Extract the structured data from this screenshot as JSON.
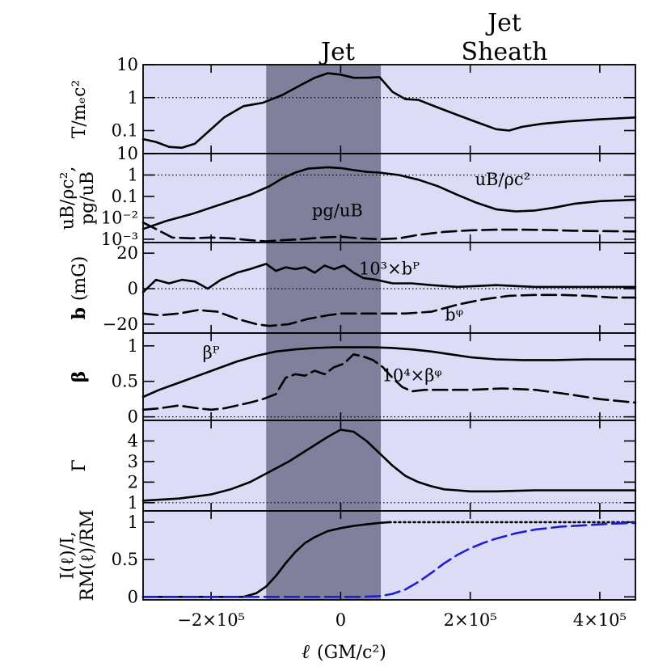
{
  "chart_data": {
    "type": "line",
    "region_labels": {
      "jet": "Jet",
      "sheath_top": "Jet",
      "sheath_bottom": "Sheath"
    },
    "regions": {
      "jet_x": [
        -115000,
        62000
      ],
      "sheath_x": [
        62000,
        455000
      ],
      "colors": {
        "background": "#dcdcf6",
        "jet": "#80809c"
      }
    },
    "x_axis": {
      "label_symbol": "ℓ",
      "label_units": "(GM/c²)",
      "range": [
        -305000,
        455000
      ],
      "ticks": [
        {
          "v": -200000,
          "label": "−2×10⁵"
        },
        {
          "v": 0,
          "label": "0"
        },
        {
          "v": 200000,
          "label": "2×10⁵"
        },
        {
          "v": 400000,
          "label": "4×10⁵"
        }
      ]
    },
    "panels": [
      {
        "ylabel": [
          "T/mₑc²"
        ],
        "scale": "log",
        "ylim": [
          0.02,
          10
        ],
        "ref_line": 1,
        "ticks": [
          {
            "v": 10,
            "label": "10"
          },
          {
            "v": 1,
            "label": "1"
          },
          {
            "v": 0.1,
            "label": "0.1"
          }
        ],
        "series": [
          {
            "style": "solid",
            "color": "#000000",
            "x": [
              -305000,
              -285000,
              -265000,
              -245000,
              -225000,
              -205000,
              -180000,
              -150000,
              -120000,
              -90000,
              -60000,
              -40000,
              -20000,
              0,
              20000,
              40000,
              60000,
              80000,
              100000,
              120000,
              150000,
              180000,
              210000,
              240000,
              260000,
              280000,
              310000,
              350000,
              400000,
              455000
            ],
            "y": [
              0.055,
              0.045,
              0.032,
              0.03,
              0.04,
              0.09,
              0.25,
              0.55,
              0.7,
              1.2,
              2.5,
              4.0,
              5.5,
              5.0,
              4.0,
              4.0,
              4.2,
              1.5,
              0.9,
              0.85,
              0.5,
              0.3,
              0.18,
              0.11,
              0.1,
              0.13,
              0.16,
              0.19,
              0.22,
              0.25
            ]
          }
        ]
      },
      {
        "ylabel": [
          "uB/ρc²,",
          "pg/uB"
        ],
        "scale": "log",
        "ylim": [
          0.0007,
          10
        ],
        "ref_line": 1,
        "ticks": [
          {
            "v": 10,
            "label": "10"
          },
          {
            "v": 1,
            "label": "1"
          },
          {
            "v": 0.1,
            "label": "0.1"
          },
          {
            "v": 0.01,
            "label": "10⁻²"
          },
          {
            "v": 0.001,
            "label": "10⁻³"
          }
        ],
        "annotations": [
          {
            "text": "uB/ρc²",
            "x": 250000,
            "y": 0.33
          },
          {
            "text": "pg/uB",
            "x": -5000,
            "y": 0.012
          }
        ],
        "series": [
          {
            "name": "uB/ρc²",
            "style": "solid",
            "color": "#000000",
            "x": [
              -305000,
              -270000,
              -230000,
              -200000,
              -170000,
              -140000,
              -110000,
              -90000,
              -70000,
              -50000,
              -20000,
              0,
              20000,
              40000,
              60000,
              90000,
              120000,
              150000,
              180000,
              210000,
              240000,
              270000,
              300000,
              330000,
              360000,
              400000,
              455000
            ],
            "y": [
              0.003,
              0.007,
              0.015,
              0.03,
              0.06,
              0.12,
              0.3,
              0.7,
              1.3,
              2.0,
              2.3,
              2.1,
              1.7,
              1.4,
              1.3,
              1.0,
              0.6,
              0.3,
              0.12,
              0.05,
              0.025,
              0.02,
              0.022,
              0.03,
              0.045,
              0.06,
              0.07
            ]
          },
          {
            "name": "pg/uB",
            "style": "dashed",
            "color": "#000000",
            "x": [
              -305000,
              -285000,
              -260000,
              -230000,
              -200000,
              -170000,
              -140000,
              -115000,
              -90000,
              -60000,
              -30000,
              0,
              30000,
              60000,
              90000,
              120000,
              160000,
              200000,
              240000,
              280000,
              320000,
              360000,
              400000,
              455000
            ],
            "y": [
              0.006,
              0.003,
              0.0012,
              0.0011,
              0.0012,
              0.0011,
              0.0009,
              0.0008,
              0.0009,
              0.001,
              0.0012,
              0.0013,
              0.0011,
              0.001,
              0.0011,
              0.0016,
              0.0022,
              0.0026,
              0.0028,
              0.0028,
              0.0027,
              0.0025,
              0.0024,
              0.0023
            ]
          }
        ]
      },
      {
        "ylabel_bold": "b",
        "ylabel": [
          "(mG)"
        ],
        "scale": "linear",
        "ylim": [
          -25,
          26
        ],
        "ref_line": 0,
        "ticks": [
          {
            "v": 20,
            "label": "20"
          },
          {
            "v": 0,
            "label": "0"
          },
          {
            "v": -20,
            "label": "−20"
          }
        ],
        "annotations": [
          {
            "text": "10³×bᴾ",
            "x": 75000,
            "y": 8
          },
          {
            "text": "bᵠ",
            "x": 175000,
            "y": -18
          }
        ],
        "series": [
          {
            "name": "10³×bP",
            "style": "solid",
            "color": "#000000",
            "x": [
              -305000,
              -285000,
              -265000,
              -245000,
              -225000,
              -205000,
              -185000,
              -160000,
              -140000,
              -115000,
              -100000,
              -85000,
              -70000,
              -55000,
              -40000,
              -25000,
              -10000,
              5000,
              20000,
              35000,
              55000,
              80000,
              110000,
              140000,
              180000,
              240000,
              300000,
              360000,
              455000
            ],
            "y": [
              -2,
              5,
              3,
              5,
              4,
              0,
              5,
              9,
              11,
              14,
              10,
              12,
              11,
              12,
              9,
              13,
              11,
              13,
              9,
              6,
              5,
              3,
              3,
              2,
              1,
              2,
              1,
              1,
              1
            ]
          },
          {
            "name": "bphi",
            "style": "dashed",
            "color": "#000000",
            "x": [
              -305000,
              -280000,
              -250000,
              -220000,
              -190000,
              -160000,
              -130000,
              -110000,
              -80000,
              -50000,
              -20000,
              0,
              30000,
              60000,
              100000,
              140000,
              180000,
              220000,
              260000,
              300000,
              340000,
              380000,
              420000,
              455000
            ],
            "y": [
              -14,
              -15,
              -14,
              -12,
              -13,
              -17,
              -20,
              -21,
              -20,
              -17,
              -15,
              -14,
              -14,
              -14,
              -14,
              -13,
              -9,
              -6,
              -4,
              -3.5,
              -3.5,
              -4,
              -5,
              -5
            ]
          }
        ]
      },
      {
        "ylabel_bold": "β",
        "ylabel": [],
        "scale": "linear",
        "ylim": [
          -0.05,
          1.18
        ],
        "ref_line": 0,
        "ticks": [
          {
            "v": 1,
            "label": "1"
          },
          {
            "v": 0.5,
            "label": "0.5"
          },
          {
            "v": 0,
            "label": "0"
          }
        ],
        "annotations": [
          {
            "text": "βᴾ",
            "x": -200000,
            "y": 0.82
          },
          {
            "text": "10⁴×βᵠ",
            "x": 110000,
            "y": 0.5
          }
        ],
        "series": [
          {
            "name": "betaP",
            "style": "solid",
            "color": "#000000",
            "x": [
              -305000,
              -280000,
              -250000,
              -220000,
              -190000,
              -160000,
              -130000,
              -100000,
              -70000,
              -40000,
              -10000,
              20000,
              50000,
              80000,
              110000,
              140000,
              170000,
              200000,
              240000,
              280000,
              330000,
              380000,
              455000
            ],
            "y": [
              0.28,
              0.38,
              0.48,
              0.58,
              0.68,
              0.78,
              0.86,
              0.92,
              0.95,
              0.97,
              0.98,
              0.98,
              0.98,
              0.97,
              0.95,
              0.92,
              0.88,
              0.84,
              0.81,
              0.8,
              0.8,
              0.81,
              0.81
            ]
          },
          {
            "name": "1e4 betaphi",
            "style": "dashed",
            "color": "#000000",
            "x": [
              -305000,
              -280000,
              -250000,
              -220000,
              -200000,
              -180000,
              -160000,
              -140000,
              -120000,
              -100000,
              -85000,
              -70000,
              -55000,
              -40000,
              -25000,
              -10000,
              5000,
              20000,
              35000,
              50000,
              65000,
              80000,
              95000,
              110000,
              130000,
              160000,
              200000,
              250000,
              300000,
              350000,
              400000,
              455000
            ],
            "y": [
              0.1,
              0.12,
              0.16,
              0.12,
              0.1,
              0.12,
              0.16,
              0.2,
              0.25,
              0.32,
              0.55,
              0.6,
              0.58,
              0.65,
              0.6,
              0.7,
              0.75,
              0.88,
              0.85,
              0.8,
              0.7,
              0.55,
              0.42,
              0.36,
              0.38,
              0.38,
              0.38,
              0.4,
              0.38,
              0.32,
              0.25,
              0.2
            ]
          }
        ]
      },
      {
        "ylabel": [
          "Γ"
        ],
        "scale": "linear",
        "ylim": [
          0.6,
          5.0
        ],
        "ref_line": 1,
        "ticks": [
          {
            "v": 4,
            "label": "4"
          },
          {
            "v": 3,
            "label": "3"
          },
          {
            "v": 2,
            "label": "2"
          },
          {
            "v": 1,
            "label": "1"
          }
        ],
        "series": [
          {
            "name": "Gamma",
            "style": "solid",
            "color": "#000000",
            "x": [
              -305000,
              -250000,
              -200000,
              -170000,
              -140000,
              -110000,
              -80000,
              -50000,
              -20000,
              0,
              20000,
              40000,
              60000,
              80000,
              100000,
              120000,
              140000,
              160000,
              180000,
              200000,
              240000,
              300000,
              360000,
              455000
            ],
            "y": [
              1.1,
              1.2,
              1.4,
              1.65,
              2.0,
              2.5,
              3.0,
              3.6,
              4.2,
              4.55,
              4.45,
              4.0,
              3.4,
              2.8,
              2.3,
              2.0,
              1.8,
              1.65,
              1.6,
              1.55,
              1.55,
              1.6,
              1.6,
              1.6
            ]
          }
        ]
      },
      {
        "ylabel": [
          "I(ℓ)/I,",
          "RM(ℓ)/RM"
        ],
        "scale": "linear",
        "ylim": [
          -0.04,
          1.15
        ],
        "ref_line": null,
        "ticks": [
          {
            "v": 1,
            "label": "1"
          },
          {
            "v": 0.5,
            "label": "0.5"
          },
          {
            "v": 0,
            "label": "0"
          }
        ],
        "series": [
          {
            "name": "I(l)/I",
            "style": "solid",
            "color": "#000000",
            "x": [
              -305000,
              -200000,
              -150000,
              -130000,
              -115000,
              -100000,
              -85000,
              -70000,
              -55000,
              -40000,
              -20000,
              0,
              20000,
              40000,
              60000,
              75000
            ],
            "y": [
              0,
              0,
              0,
              0.05,
              0.14,
              0.28,
              0.45,
              0.6,
              0.72,
              0.8,
              0.88,
              0.92,
              0.95,
              0.97,
              0.99,
              1.0
            ]
          },
          {
            "name": "I(l)/I tail",
            "style": "dotted",
            "color": "#000000",
            "x": [
              75000,
              455000
            ],
            "y": [
              1.0,
              1.0
            ]
          },
          {
            "name": "RM(l)/RM",
            "style": "dashed",
            "color": "#1f1fd0",
            "x": [
              -305000,
              0,
              30000,
              60000,
              80000,
              100000,
              120000,
              140000,
              160000,
              180000,
              200000,
              220000,
              240000,
              270000,
              300000,
              340000,
              380000,
              420000,
              455000
            ],
            "y": [
              0,
              0,
              0,
              0.01,
              0.04,
              0.1,
              0.2,
              0.32,
              0.45,
              0.56,
              0.65,
              0.72,
              0.78,
              0.85,
              0.9,
              0.94,
              0.96,
              0.98,
              0.99
            ]
          }
        ]
      }
    ]
  }
}
